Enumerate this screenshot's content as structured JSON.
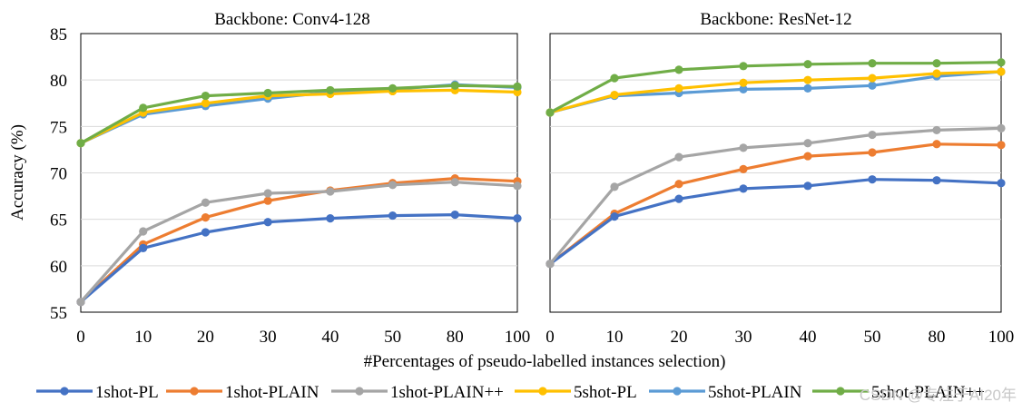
{
  "chart_data": {
    "type": "line",
    "ylabel": "Accuracy (%)",
    "xlabel": "#Percentages of pseudo-labelled instances selection)",
    "x_categories": [
      "0",
      "10",
      "20",
      "30",
      "40",
      "50",
      "80",
      "100"
    ],
    "ylim": [
      55,
      85
    ],
    "y_ticks": [
      55,
      60,
      65,
      70,
      75,
      80,
      85
    ],
    "colors": {
      "1shot-PL": "#4472c4",
      "1shot-PLAIN": "#ed7d31",
      "1shot-PLAIN++": "#a5a5a5",
      "5shot-PL": "#ffc000",
      "5shot-PLAIN": "#5b9bd5",
      "5shot-PLAIN++": "#70ad47"
    },
    "legend": [
      "1shot-PL",
      "1shot-PLAIN",
      "1shot-PLAIN++",
      "5shot-PL",
      "5shot-PLAIN",
      "5shot-PLAIN++"
    ],
    "panels": [
      {
        "title": "Backbone: Conv4-128",
        "series": [
          {
            "name": "1shot-PL",
            "values": [
              56.1,
              61.9,
              63.6,
              64.7,
              65.1,
              65.4,
              65.5,
              65.1
            ]
          },
          {
            "name": "1shot-PLAIN",
            "values": [
              56.1,
              62.3,
              65.2,
              67.0,
              68.1,
              68.9,
              69.4,
              69.1
            ]
          },
          {
            "name": "1shot-PLAIN++",
            "values": [
              56.1,
              63.7,
              66.8,
              67.8,
              68.0,
              68.7,
              69.0,
              68.6
            ]
          },
          {
            "name": "5shot-PL",
            "values": [
              73.2,
              76.5,
              77.5,
              78.3,
              78.5,
              78.8,
              78.9,
              78.7
            ]
          },
          {
            "name": "5shot-PLAIN",
            "values": [
              73.2,
              76.3,
              77.2,
              78.0,
              78.7,
              79.0,
              79.5,
              79.2
            ]
          },
          {
            "name": "5shot-PLAIN++",
            "values": [
              73.2,
              77.0,
              78.3,
              78.6,
              78.9,
              79.1,
              79.4,
              79.3
            ]
          }
        ]
      },
      {
        "title": "Backbone: ResNet-12",
        "series": [
          {
            "name": "1shot-PL",
            "values": [
              60.2,
              65.3,
              67.2,
              68.3,
              68.6,
              69.3,
              69.2,
              68.9
            ]
          },
          {
            "name": "1shot-PLAIN",
            "values": [
              60.2,
              65.6,
              68.8,
              70.4,
              71.8,
              72.2,
              73.1,
              73.0
            ]
          },
          {
            "name": "1shot-PLAIN++",
            "values": [
              60.2,
              68.5,
              71.7,
              72.7,
              73.2,
              74.1,
              74.6,
              74.8
            ]
          },
          {
            "name": "5shot-PL",
            "values": [
              76.5,
              78.4,
              79.1,
              79.7,
              80.0,
              80.2,
              80.7,
              80.9
            ]
          },
          {
            "name": "5shot-PLAIN",
            "values": [
              76.5,
              78.3,
              78.6,
              79.0,
              79.1,
              79.4,
              80.4,
              80.9
            ]
          },
          {
            "name": "5shot-PLAIN++",
            "values": [
              76.5,
              80.2,
              81.1,
              81.5,
              81.7,
              81.8,
              81.8,
              81.9
            ]
          }
        ]
      }
    ]
  },
  "watermark": "CSDN @专注于AI20年"
}
